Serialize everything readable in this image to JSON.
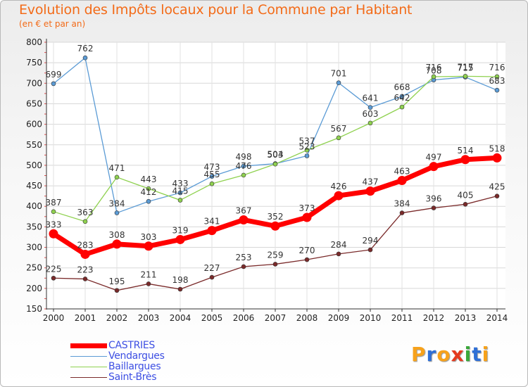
{
  "title": "Evolution des Impôts locaux pour la Commune par Habitant",
  "subtitle": "(en € et par an)",
  "brand": {
    "letters": [
      "P",
      "r",
      "o",
      "x",
      "i",
      "t",
      "i"
    ],
    "colors": [
      "#f7a21b",
      "#2f6fd6",
      "#f7a21b",
      "#e53a1f",
      "#3aa83a",
      "#2f6fd6",
      "#f7a21b"
    ]
  },
  "chart_data": {
    "type": "line",
    "title": "Evolution des Impôts locaux pour la Commune par Habitant",
    "subtitle": "(en € et par an)",
    "x": [
      "2000",
      "2001",
      "2002",
      "2003",
      "2004",
      "2005",
      "2006",
      "2007",
      "2008",
      "2009",
      "2010",
      "2011",
      "2012",
      "2013",
      "2014"
    ],
    "ylim": [
      150,
      800
    ],
    "yticks": [
      150,
      200,
      250,
      300,
      350,
      400,
      450,
      500,
      550,
      600,
      650,
      700,
      750,
      800
    ],
    "grid": true,
    "legend_position": "bottom-left",
    "series": [
      {
        "name": "CASTRIES",
        "color": "#ff0000",
        "values": [
          333,
          283,
          308,
          303,
          319,
          341,
          367,
          352,
          373,
          426,
          437,
          463,
          497,
          514,
          518
        ]
      },
      {
        "name": "Vendargues",
        "color": "#5b9bd5",
        "values": [
          699,
          762,
          384,
          412,
          433,
          473,
          498,
          504,
          523,
          701,
          641,
          668,
          708,
          715,
          683
        ]
      },
      {
        "name": "Baillargues",
        "color": "#8fd14f",
        "values": [
          387,
          363,
          471,
          443,
          415,
          455,
          476,
          503,
          537,
          567,
          603,
          642,
          716,
          717,
          716
        ]
      },
      {
        "name": "Saint-Brès",
        "color": "#7a2a2a",
        "values": [
          225,
          223,
          195,
          211,
          198,
          227,
          253,
          259,
          270,
          284,
          294,
          384,
          396,
          405,
          425
        ]
      }
    ]
  }
}
